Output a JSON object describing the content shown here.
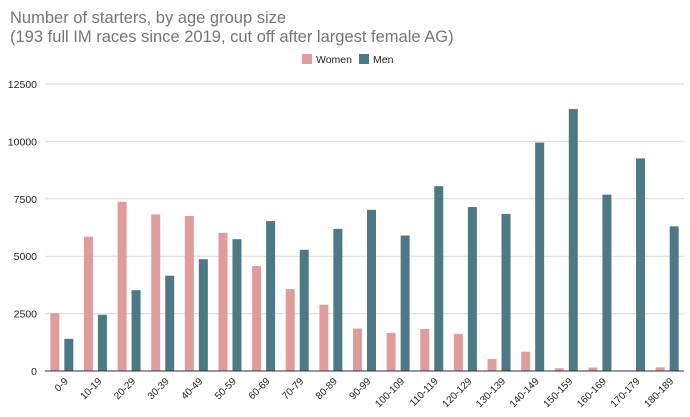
{
  "chart_data": {
    "type": "bar",
    "title": "Number of starters, by age group size",
    "subtitle": "(193 full IM races since 2019, cut off after largest female AG)",
    "xlabel": "",
    "ylabel": "",
    "ylim": [
      0,
      12500
    ],
    "yticks": [
      0,
      2500,
      5000,
      7500,
      10000,
      12500
    ],
    "ytick_labels": [
      "0",
      "2500",
      "5000",
      "7500",
      "10000",
      "12500"
    ],
    "grid": true,
    "legend_position": "top-center",
    "categories": [
      "0-9",
      "10-19",
      "20-29",
      "30-39",
      "40-49",
      "50-59",
      "60-69",
      "70-79",
      "80-89",
      "90-99",
      "100-109",
      "110-119",
      "120-129",
      "130-139",
      "140-149",
      "150-159",
      "160-169",
      "170-179",
      "180-189"
    ],
    "series": [
      {
        "name": "Women",
        "color": "#e09c9a",
        "values": [
          2520,
          5850,
          7370,
          6820,
          6750,
          6020,
          4570,
          3570,
          2890,
          1850,
          1660,
          1830,
          1620,
          520,
          840,
          120,
          150,
          0,
          160
        ]
      },
      {
        "name": "Men",
        "color": "#4d7986",
        "values": [
          1400,
          2450,
          3520,
          4150,
          4870,
          5740,
          6530,
          5280,
          6190,
          7020,
          5900,
          8050,
          7140,
          6840,
          9950,
          11410,
          7680,
          9260,
          6300
        ]
      }
    ]
  }
}
